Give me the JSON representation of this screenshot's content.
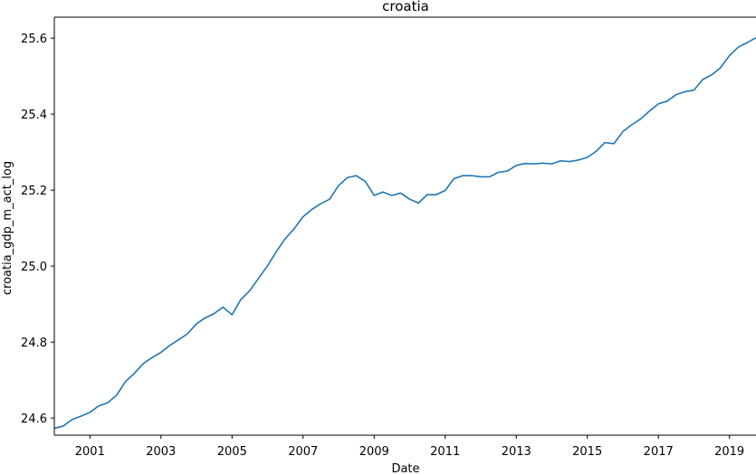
{
  "chart_data": {
    "type": "line",
    "title": "croatia",
    "xlabel": "Date",
    "ylabel": "croatia_gdp_m_act_log",
    "xlim": [
      "2000-01-01",
      "2019-10-01"
    ],
    "ylim": [
      24.555,
      25.655
    ],
    "x_ticks": [
      "2001",
      "2003",
      "2005",
      "2007",
      "2009",
      "2011",
      "2013",
      "2015",
      "2017",
      "2019"
    ],
    "y_ticks": [
      "24.6",
      "24.8",
      "25.0",
      "25.2",
      "25.4",
      "25.6"
    ],
    "grid": false,
    "legend": "none",
    "series": [
      {
        "color": "#1f77b4",
        "x": [
          "2000-01-01",
          "2000-04-01",
          "2000-07-01",
          "2000-10-01",
          "2001-01-01",
          "2001-04-01",
          "2001-07-01",
          "2001-10-01",
          "2002-01-01",
          "2002-04-01",
          "2002-07-01",
          "2002-10-01",
          "2003-01-01",
          "2003-04-01",
          "2003-07-01",
          "2003-10-01",
          "2004-01-01",
          "2004-04-01",
          "2004-07-01",
          "2004-10-01",
          "2005-01-01",
          "2005-04-01",
          "2005-07-01",
          "2005-10-01",
          "2006-01-01",
          "2006-04-01",
          "2006-07-01",
          "2006-10-01",
          "2007-01-01",
          "2007-04-01",
          "2007-07-01",
          "2007-10-01",
          "2008-01-01",
          "2008-04-01",
          "2008-07-01",
          "2008-10-01",
          "2009-01-01",
          "2009-04-01",
          "2009-07-01",
          "2009-10-01",
          "2010-01-01",
          "2010-04-01",
          "2010-07-01",
          "2010-10-01",
          "2011-01-01",
          "2011-04-01",
          "2011-07-01",
          "2011-10-01",
          "2012-01-01",
          "2012-04-01",
          "2012-07-01",
          "2012-10-01",
          "2013-01-01",
          "2013-04-01",
          "2013-07-01",
          "2013-10-01",
          "2014-01-01",
          "2014-04-01",
          "2014-07-01",
          "2014-10-01",
          "2015-01-01",
          "2015-04-01",
          "2015-07-01",
          "2015-10-01",
          "2016-01-01",
          "2016-04-01",
          "2016-07-01",
          "2016-10-01",
          "2017-01-01",
          "2017-04-01",
          "2017-07-01",
          "2017-10-01",
          "2018-01-01",
          "2018-04-01",
          "2018-07-01",
          "2018-10-01",
          "2019-01-01",
          "2019-04-01",
          "2019-07-01",
          "2019-10-01"
        ],
        "y": [
          24.573,
          24.579,
          24.596,
          24.605,
          24.615,
          24.632,
          24.64,
          24.66,
          24.696,
          24.717,
          24.743,
          24.759,
          24.773,
          24.791,
          24.806,
          24.822,
          24.848,
          24.864,
          24.875,
          24.892,
          24.872,
          24.912,
          24.935,
          24.968,
          25.001,
          25.038,
          25.072,
          25.098,
          25.13,
          25.149,
          25.164,
          25.176,
          25.212,
          25.233,
          25.238,
          25.223,
          25.186,
          25.195,
          25.186,
          25.192,
          25.176,
          25.166,
          25.188,
          25.188,
          25.199,
          25.23,
          25.238,
          25.238,
          25.235,
          25.235,
          25.247,
          25.25,
          25.265,
          25.27,
          25.269,
          25.271,
          25.269,
          25.277,
          25.275,
          25.279,
          25.286,
          25.302,
          25.325,
          25.322,
          25.354,
          25.372,
          25.387,
          25.408,
          25.427,
          25.434,
          25.451,
          25.459,
          25.463,
          25.491,
          25.503,
          25.522,
          25.554,
          25.576,
          25.588,
          25.601
        ]
      }
    ]
  }
}
